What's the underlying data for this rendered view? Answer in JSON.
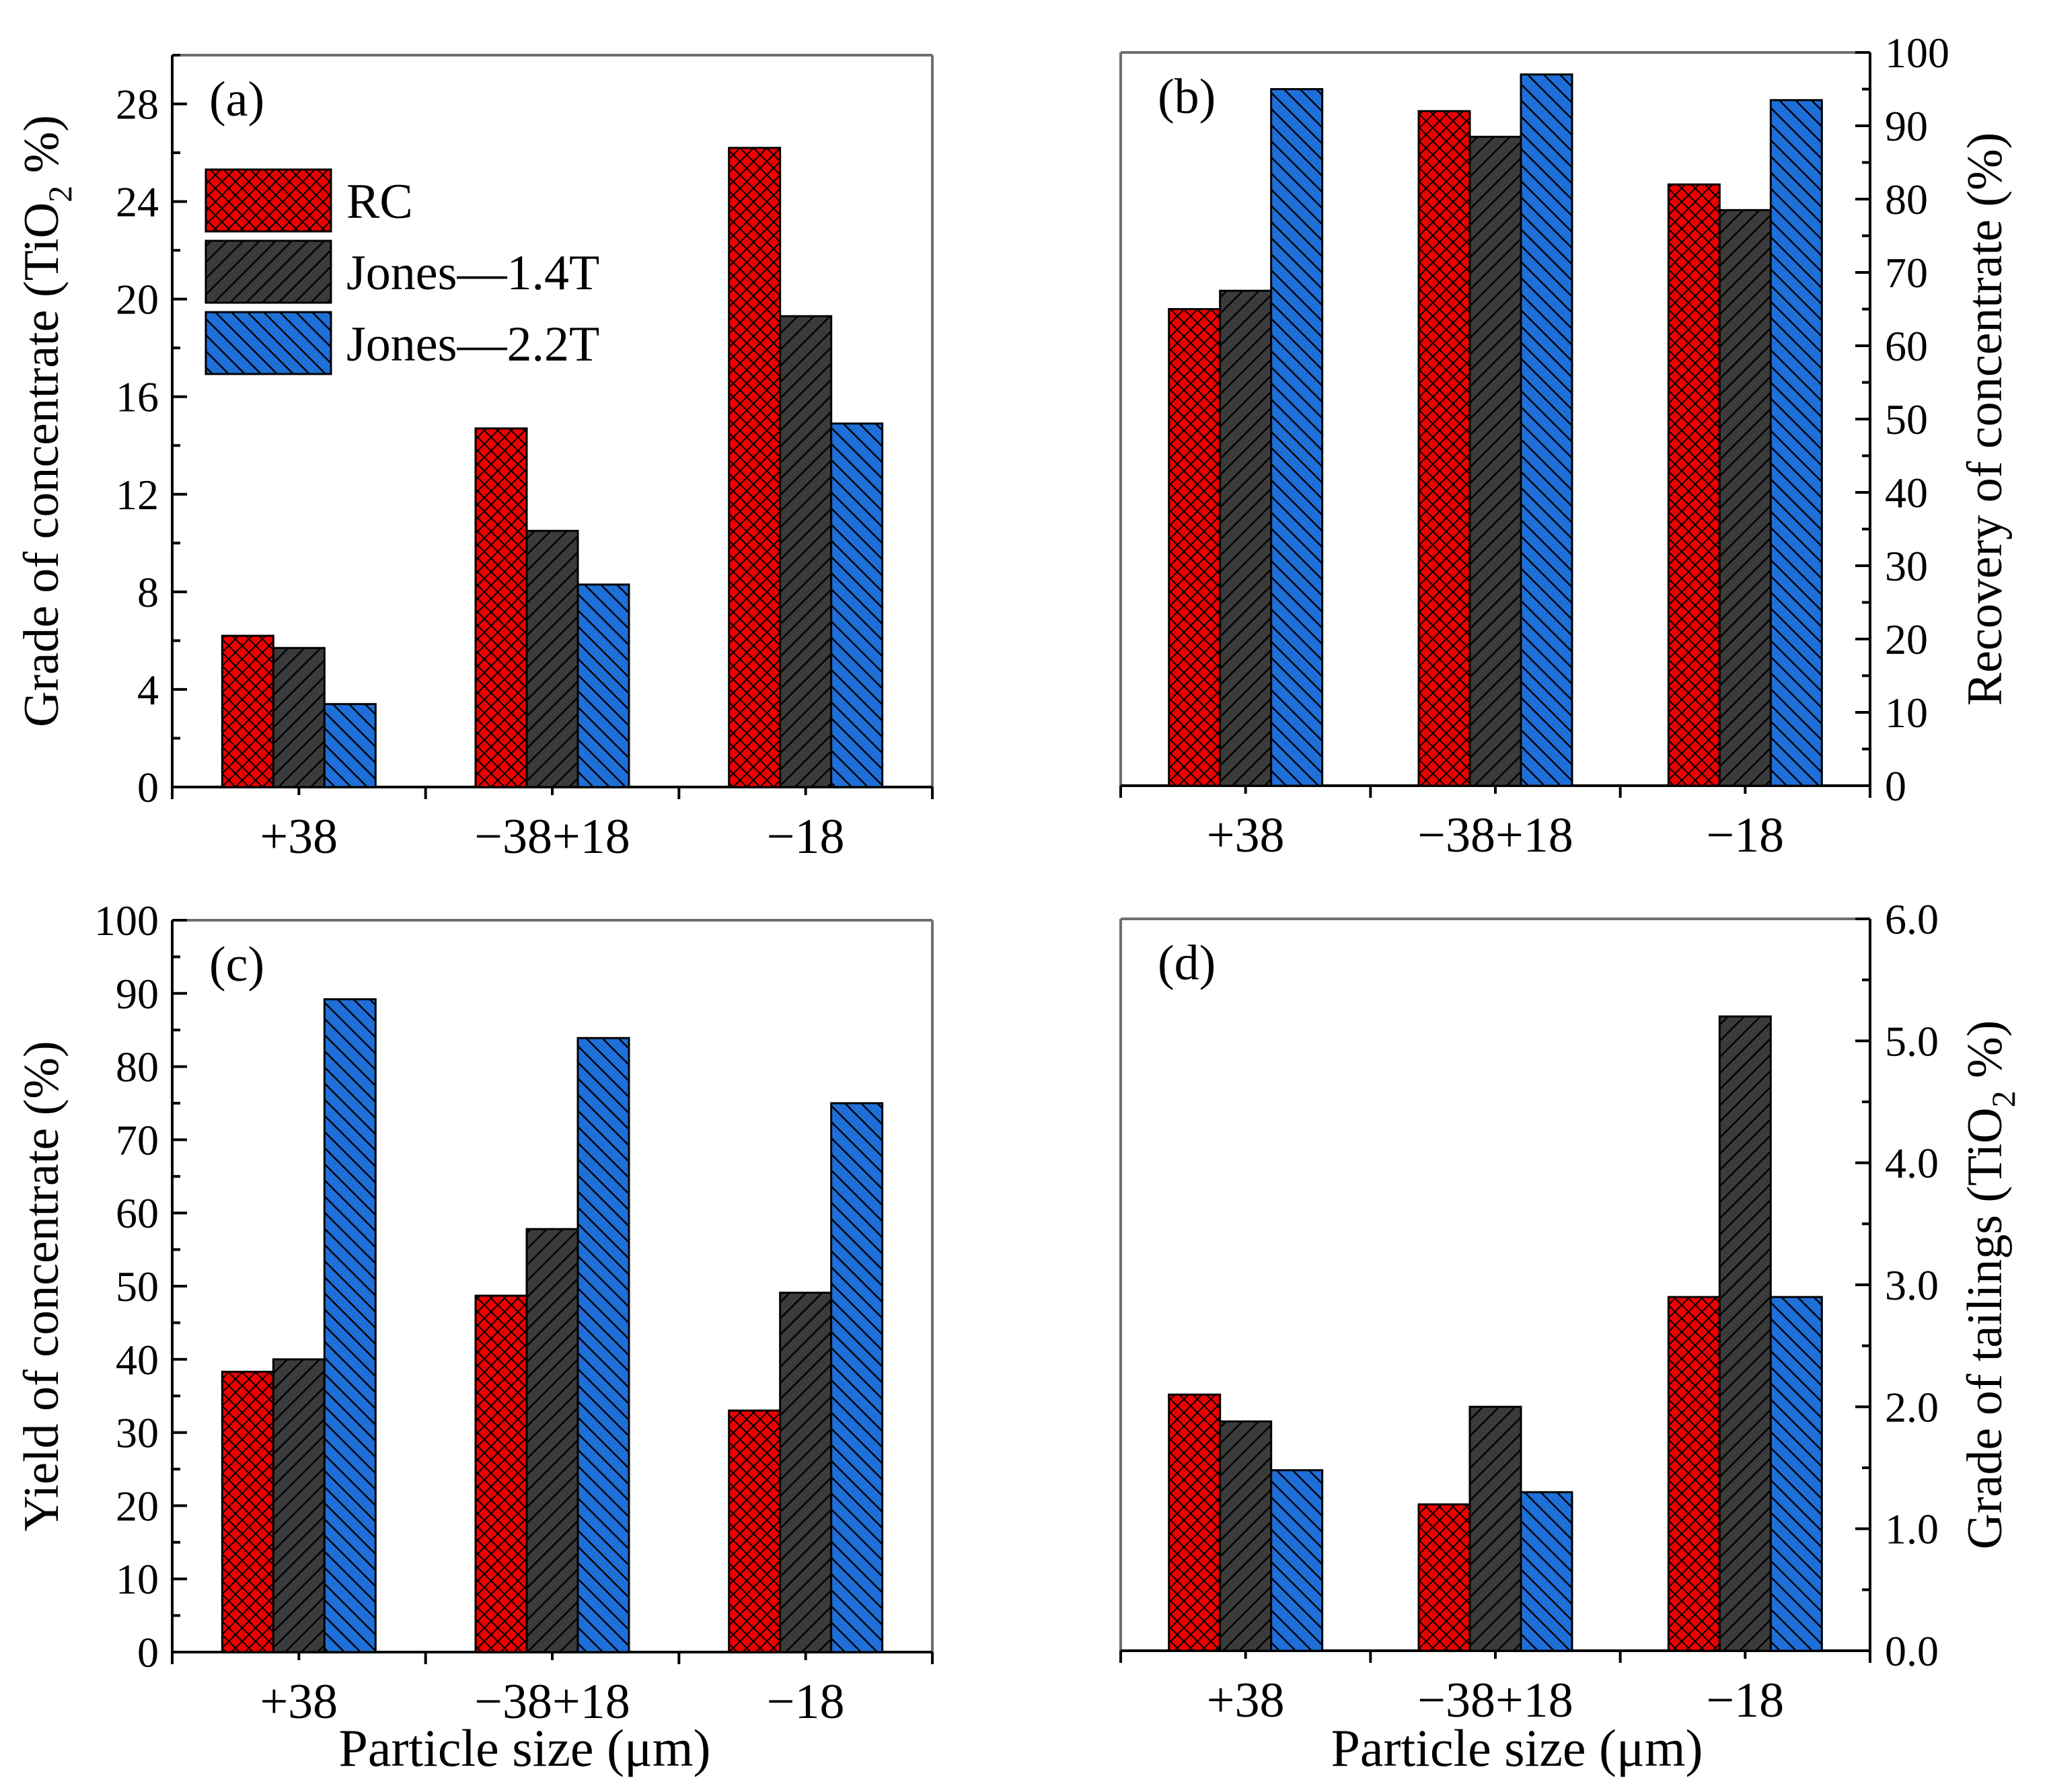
{
  "figure": {
    "categories": [
      "+38",
      "−38+18",
      "−18"
    ],
    "xlabel": "Particle size  (μm)",
    "xlabel_right": "Particle size (μm)",
    "legend": [
      {
        "label": "RC",
        "color": "#ee0000",
        "pattern": "crosshatch"
      },
      {
        "label": "Jones—1.4T",
        "color": "#3b3b3b",
        "pattern": "forward-diagonal"
      },
      {
        "label": "Jones—2.2T",
        "color": "#1f6fd8",
        "pattern": "backward-diagonal"
      }
    ]
  },
  "chart_data": [
    {
      "panel": "(a)",
      "type": "bar",
      "categories": [
        "+38",
        "−38+18",
        "−18"
      ],
      "series": [
        {
          "name": "RC",
          "values": [
            6.2,
            14.7,
            26.2
          ]
        },
        {
          "name": "Jones—1.4T",
          "values": [
            5.7,
            10.5,
            19.3
          ]
        },
        {
          "name": "Jones—2.2T",
          "values": [
            3.4,
            8.3,
            14.9
          ]
        }
      ],
      "ylabel": "Grade of concentrate (TiO",
      "ylabel_sub": "2",
      "ylabel_end": " %)",
      "ylim": [
        0,
        30
      ],
      "yticks": [
        "0",
        "4",
        "8",
        "12",
        "16",
        "20",
        "24",
        "28"
      ],
      "ytick_values": [
        0,
        4,
        8,
        12,
        16,
        20,
        24,
        28
      ],
      "yaxis_side": "left",
      "legend": true
    },
    {
      "panel": "(b)",
      "type": "bar",
      "categories": [
        "+38",
        "−38+18",
        "−18"
      ],
      "series": [
        {
          "name": "RC",
          "values": [
            65.0,
            92.0,
            82.0
          ]
        },
        {
          "name": "Jones—1.4T",
          "values": [
            67.5,
            88.5,
            78.5
          ]
        },
        {
          "name": "Jones—2.2T",
          "values": [
            95.0,
            97.0,
            93.5
          ]
        }
      ],
      "ylabel": "Recovery of concentrate (%)",
      "ylim": [
        0,
        100
      ],
      "yticks": [
        "0",
        "10",
        "20",
        "30",
        "40",
        "50",
        "60",
        "70",
        "80",
        "90",
        "100"
      ],
      "ytick_values": [
        0,
        10,
        20,
        30,
        40,
        50,
        60,
        70,
        80,
        90,
        100
      ],
      "yaxis_side": "right",
      "legend": false
    },
    {
      "panel": "(c)",
      "type": "bar",
      "categories": [
        "+38",
        "−38+18",
        "−18"
      ],
      "series": [
        {
          "name": "RC",
          "values": [
            38.3,
            48.7,
            33.0
          ]
        },
        {
          "name": "Jones—1.4T",
          "values": [
            40.0,
            57.8,
            49.1
          ]
        },
        {
          "name": "Jones—2.2T",
          "values": [
            89.2,
            83.9,
            75.0
          ]
        }
      ],
      "ylabel": "Yield of concentrate (%)",
      "ylim": [
        0,
        100
      ],
      "yticks": [
        "0",
        "10",
        "20",
        "30",
        "40",
        "50",
        "60",
        "70",
        "80",
        "90",
        "100"
      ],
      "ytick_values": [
        0,
        10,
        20,
        30,
        40,
        50,
        60,
        70,
        80,
        90,
        100
      ],
      "yaxis_side": "left",
      "legend": false
    },
    {
      "panel": "(d)",
      "type": "bar",
      "categories": [
        "+38",
        "−38+18",
        "−18"
      ],
      "series": [
        {
          "name": "RC",
          "values": [
            2.1,
            1.2,
            2.9
          ]
        },
        {
          "name": "Jones—1.4T",
          "values": [
            1.88,
            2.0,
            5.2
          ]
        },
        {
          "name": "Jones—2.2T",
          "values": [
            1.48,
            1.3,
            2.9
          ]
        }
      ],
      "ylabel": "Grade of tailings  (TiO",
      "ylabel_sub": "2",
      "ylabel_end": " %)",
      "ylim": [
        0,
        6
      ],
      "yticks": [
        "0.0",
        "1.0",
        "2.0",
        "3.0",
        "4.0",
        "5.0",
        "6.0"
      ],
      "ytick_values": [
        0,
        1,
        2,
        3,
        4,
        5,
        6
      ],
      "yaxis_side": "right",
      "legend": false
    }
  ]
}
